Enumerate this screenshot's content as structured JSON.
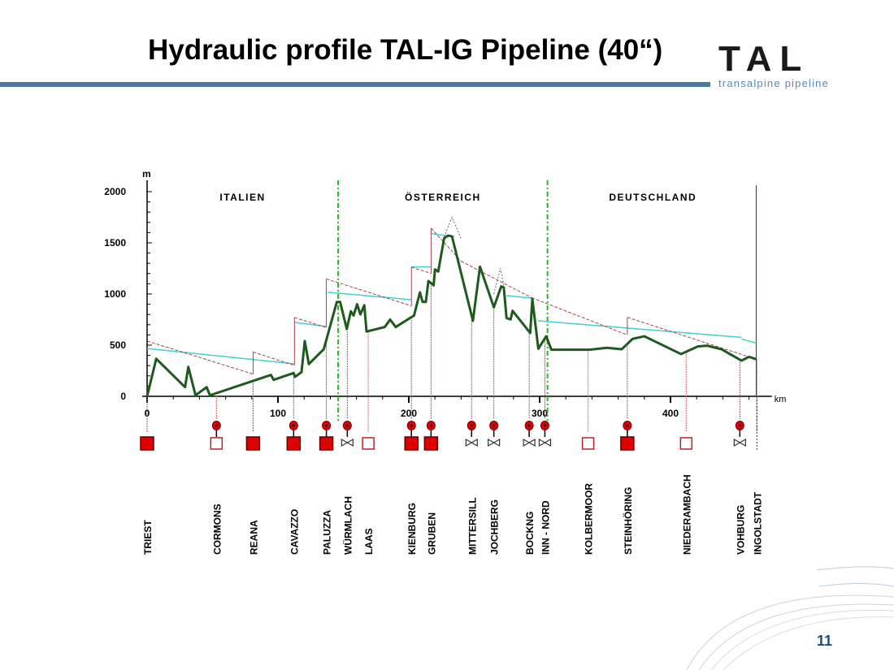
{
  "slide": {
    "title": "Hydraulic profile TAL-IG Pipeline (40“)",
    "logo": {
      "main": "TAL",
      "sub": "transalpine pipeline"
    },
    "page_number": "11"
  },
  "colors": {
    "accent": "#4a78a8",
    "profile": "#1e5a1e",
    "gradient": "#a0303a",
    "cyan": "#40d0d0",
    "border": "#22bb22",
    "station": "#e00000"
  },
  "chart_data": {
    "type": "line",
    "title": "Hydraulic profile TAL-IG Pipeline (40“)",
    "xlabel": "km",
    "ylabel": "m",
    "xlim": [
      0,
      470
    ],
    "ylim": [
      0,
      2000
    ],
    "xticks": [
      0,
      100,
      200,
      300,
      400
    ],
    "yticks": [
      0,
      500,
      1000,
      1500,
      2000
    ],
    "regions": [
      {
        "label": "ITALIEN",
        "from": 0,
        "to": 146
      },
      {
        "label": "ÖSTERREICH",
        "from": 146,
        "to": 306
      },
      {
        "label": "DEUTSCHLAND",
        "from": 306,
        "to": 467
      }
    ],
    "borders_km": [
      146,
      306
    ],
    "series": [
      {
        "name": "Elevation profile",
        "points": [
          [
            0,
            0
          ],
          [
            7,
            367
          ],
          [
            29,
            90
          ],
          [
            31.5,
            288
          ],
          [
            37,
            10
          ],
          [
            45.5,
            90
          ],
          [
            48,
            10
          ],
          [
            94.6,
            209
          ],
          [
            96.7,
            161
          ],
          [
            112,
            228
          ],
          [
            113,
            190
          ],
          [
            118,
            236
          ],
          [
            120.5,
            540
          ],
          [
            123.6,
            315
          ],
          [
            135,
            460
          ],
          [
            145,
            923
          ],
          [
            147.5,
            923
          ],
          [
            152.6,
            659
          ],
          [
            155.7,
            831
          ],
          [
            157.8,
            790
          ],
          [
            160.5,
            900
          ],
          [
            163,
            800
          ],
          [
            166,
            890
          ],
          [
            167.7,
            633
          ],
          [
            181.6,
            677
          ],
          [
            185.7,
            750
          ],
          [
            190,
            677
          ],
          [
            204,
            790
          ],
          [
            208.5,
            1016
          ],
          [
            210.5,
            923
          ],
          [
            213,
            923
          ],
          [
            215,
            1127
          ],
          [
            219,
            1085
          ],
          [
            220,
            1240
          ],
          [
            222.5,
            1220
          ],
          [
            227,
            1545
          ],
          [
            230,
            1571
          ],
          [
            233,
            1563
          ],
          [
            249,
            738
          ],
          [
            254.4,
            1267
          ],
          [
            265,
            870
          ],
          [
            270.6,
            1074
          ],
          [
            272.6,
            1063
          ],
          [
            274.7,
            765
          ],
          [
            277.8,
            751
          ],
          [
            279.3,
            836
          ],
          [
            292.8,
            619
          ],
          [
            294.4,
            950
          ],
          [
            299,
            465
          ],
          [
            305,
            587
          ],
          [
            309,
            455
          ],
          [
            338,
            455
          ],
          [
            351.5,
            474
          ],
          [
            362.7,
            460
          ],
          [
            371,
            561
          ],
          [
            380,
            587
          ],
          [
            408,
            413
          ],
          [
            420.8,
            487
          ],
          [
            428,
            495
          ],
          [
            439,
            460
          ],
          [
            454.3,
            349
          ],
          [
            460,
            386
          ],
          [
            465.5,
            363
          ]
        ]
      },
      {
        "name": "Hydraulic gradient (max)",
        "segments": [
          [
            [
              0,
              540
            ],
            [
              81,
              217
            ]
          ],
          [
            [
              81,
              433
            ],
            [
              112.6,
              302
            ]
          ],
          [
            [
              112.6,
              770
            ],
            [
              137,
              672
            ]
          ],
          [
            [
              137,
              1147
            ],
            [
              202,
              884
            ]
          ],
          [
            [
              202,
              1262
            ],
            [
              217,
              1201
            ]
          ],
          [
            [
              217,
              1643
            ],
            [
              240,
              1320
            ]
          ],
          [
            [
              240,
              1320
            ],
            [
              294,
              963
            ]
          ],
          [
            [
              294,
              963
            ],
            [
              367,
              600
            ]
          ],
          [
            [
              367,
              772
            ],
            [
              465.5,
              363
            ]
          ]
        ]
      },
      {
        "name": "Hydraulic gradient (operating)",
        "segments": [
          [
            [
              0,
              467
            ],
            [
              112.6,
              317
            ]
          ],
          [
            [
              112.6,
              722
            ],
            [
              137,
              683
            ]
          ],
          [
            [
              138,
              1017
            ],
            [
              202,
              944
            ]
          ],
          [
            [
              202,
              1265
            ],
            [
              217,
              1265
            ]
          ],
          [
            [
              217,
              1590
            ],
            [
              235,
              1560
            ]
          ],
          [
            [
              274.7,
              985
            ],
            [
              294.4,
              958
            ]
          ],
          [
            [
              298.7,
              738
            ],
            [
              454.3,
              576
            ]
          ],
          [
            [
              454.3,
              560
            ],
            [
              465.5,
              520
            ]
          ]
        ]
      },
      {
        "name": "Static head peaks",
        "segments": [
          [
            [
              227,
              1560
            ],
            [
              233,
              1750
            ],
            [
              240,
              1540
            ]
          ],
          [
            [
              265,
              1000
            ],
            [
              270,
              1250
            ],
            [
              273,
              1060
            ]
          ]
        ]
      }
    ],
    "stations": [
      {
        "name": "TRIEST",
        "km": 0,
        "type": "pump",
        "valve": false,
        "circle": false
      },
      {
        "name": "CORMONS",
        "km": 53,
        "type": "open",
        "valve": false,
        "circle": true
      },
      {
        "name": "REANA",
        "km": 81,
        "type": "pump",
        "valve": false,
        "circle": false
      },
      {
        "name": "CAVAZZO",
        "km": 112,
        "type": "pump",
        "valve": false,
        "circle": true
      },
      {
        "name": "PALUZZA",
        "km": 137,
        "type": "pump",
        "valve": false,
        "circle": true
      },
      {
        "name": "WÜRMLACH",
        "km": 153,
        "type": "none",
        "valve": true,
        "circle": true
      },
      {
        "name": "LAAS",
        "km": 169,
        "type": "open",
        "valve": false,
        "circle": false
      },
      {
        "name": "KIENBURG",
        "km": 202,
        "type": "pump",
        "valve": false,
        "circle": true
      },
      {
        "name": "GRUBEN",
        "km": 217,
        "type": "pump",
        "valve": false,
        "circle": true
      },
      {
        "name": "MITTERSILL",
        "km": 248,
        "type": "none",
        "valve": true,
        "circle": true
      },
      {
        "name": "JOCHBERG",
        "km": 265,
        "type": "none",
        "valve": true,
        "circle": true
      },
      {
        "name": "BOCKNG",
        "km": 292,
        "type": "none",
        "valve": true,
        "circle": true
      },
      {
        "name": "INN - NORD",
        "km": 304,
        "type": "none",
        "valve": true,
        "circle": true
      },
      {
        "name": "KOLBERMOOR",
        "km": 337,
        "type": "open",
        "valve": false,
        "circle": false
      },
      {
        "name": "STEINHÖRING",
        "km": 367,
        "type": "pump",
        "valve": false,
        "circle": true
      },
      {
        "name": "NIEDERAMBACH",
        "km": 412,
        "type": "open",
        "valve": false,
        "circle": false
      },
      {
        "name": "VOHBURG",
        "km": 453,
        "type": "none",
        "valve": true,
        "circle": true
      },
      {
        "name": "INGOLSTADT",
        "km": 466,
        "type": "none",
        "valve": false,
        "circle": false
      }
    ]
  }
}
